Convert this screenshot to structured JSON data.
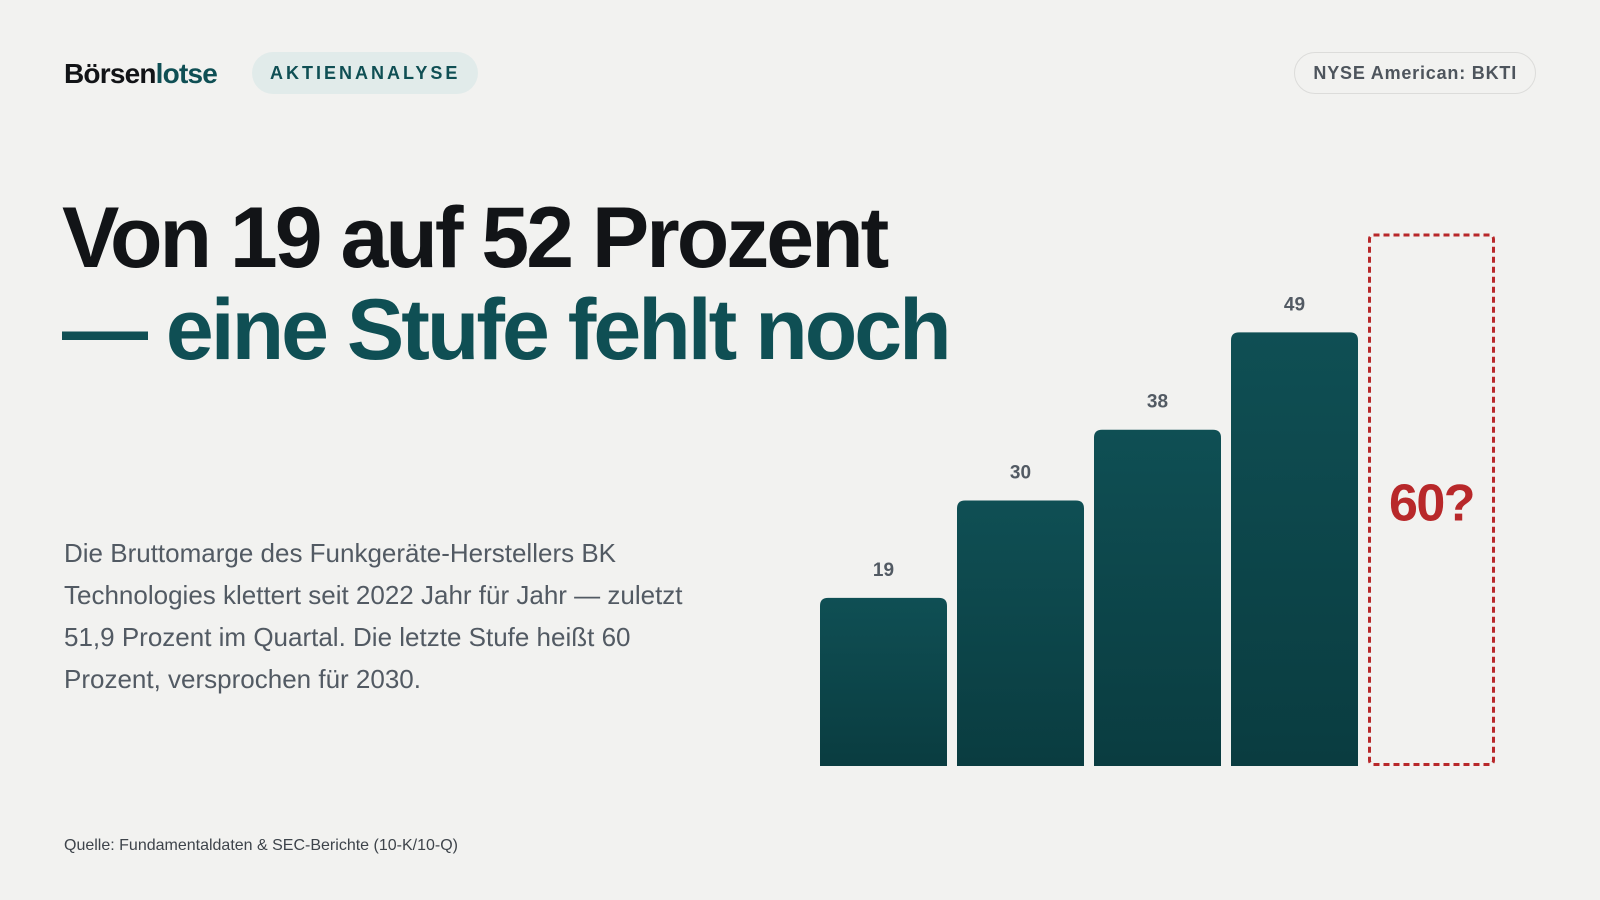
{
  "header": {
    "brand_part1": "Börsen",
    "brand_part2": "lotse",
    "tag": "AKTIENANALYSE",
    "ticker": "NYSE American: BKTI"
  },
  "headline": {
    "line1": "Von 19 auf 52 Prozent",
    "line2": "— eine Stufe fehlt noch"
  },
  "body": "Die Bruttomarge des Funkgeräte-Herstellers BK Technologies klettert seit 2022 Jahr für Jahr — zuletzt 51,9 Prozent im Quartal. Die letzte Stufe heißt 60 Prozent, versprochen für 2030.",
  "source": "Quelle: Fundamentaldaten & SEC-Berichte (10-K/10-Q)",
  "colors": {
    "bar_top": "#0f4f54",
    "bar_bottom": "#0a3c40",
    "target": "#b8282a",
    "label": "#525a63"
  },
  "chart_data": {
    "type": "bar",
    "categories": [
      "",
      "",
      "",
      ""
    ],
    "values": [
      19,
      30,
      38,
      49
    ],
    "target": {
      "value": 60,
      "label": "60?"
    },
    "title": "",
    "xlabel": "",
    "ylabel": "",
    "ylim": [
      0,
      60
    ],
    "grid": false
  }
}
